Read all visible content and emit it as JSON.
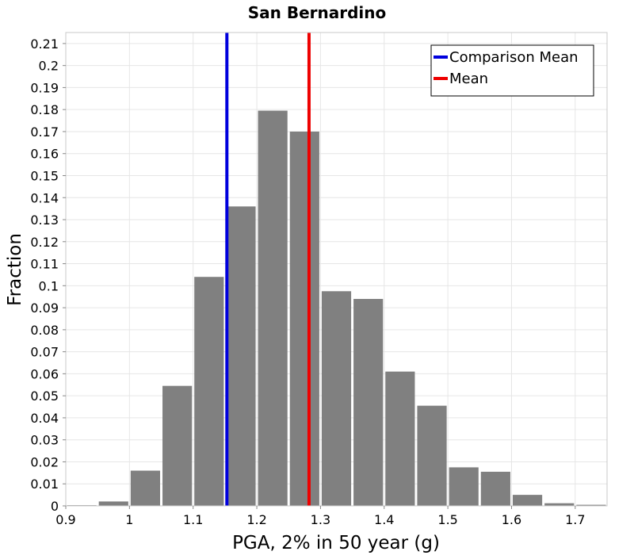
{
  "chart_data": {
    "type": "bar",
    "title": "San Bernardino",
    "xlabel": "PGA, 2% in 50 year (g)",
    "ylabel": "Fraction",
    "xlim": [
      0.9,
      1.75
    ],
    "ylim": [
      0,
      0.215
    ],
    "x_ticks": [
      "0.9",
      "1",
      "1.1",
      "1.2",
      "1.3",
      "1.4",
      "1.5",
      "1.6",
      "1.7"
    ],
    "y_ticks": [
      "0",
      "0.01",
      "0.02",
      "0.03",
      "0.04",
      "0.05",
      "0.06",
      "0.07",
      "0.08",
      "0.09",
      "0.1",
      "0.11",
      "0.12",
      "0.13",
      "0.14",
      "0.15",
      "0.16",
      "0.17",
      "0.18",
      "0.19",
      "0.2",
      "0.21"
    ],
    "grid": true,
    "bar_color": "#808080",
    "bin_width": 0.05,
    "bins": [
      {
        "center": 0.925,
        "value": 0.0003
      },
      {
        "center": 0.975,
        "value": 0.002
      },
      {
        "center": 1.025,
        "value": 0.016
      },
      {
        "center": 1.075,
        "value": 0.0545
      },
      {
        "center": 1.125,
        "value": 0.104
      },
      {
        "center": 1.175,
        "value": 0.136
      },
      {
        "center": 1.225,
        "value": 0.1795
      },
      {
        "center": 1.275,
        "value": 0.17
      },
      {
        "center": 1.325,
        "value": 0.0975
      },
      {
        "center": 1.375,
        "value": 0.094
      },
      {
        "center": 1.425,
        "value": 0.061
      },
      {
        "center": 1.475,
        "value": 0.0455
      },
      {
        "center": 1.525,
        "value": 0.0175
      },
      {
        "center": 1.575,
        "value": 0.0155
      },
      {
        "center": 1.625,
        "value": 0.005
      },
      {
        "center": 1.675,
        "value": 0.0012
      },
      {
        "center": 1.725,
        "value": 0.0005
      }
    ],
    "lines": [
      {
        "name": "Comparison Mean",
        "x": 1.153,
        "color": "#0000dd"
      },
      {
        "name": "Mean",
        "x": 1.282,
        "color": "#ee0000"
      }
    ],
    "legend_position": "top-right"
  }
}
